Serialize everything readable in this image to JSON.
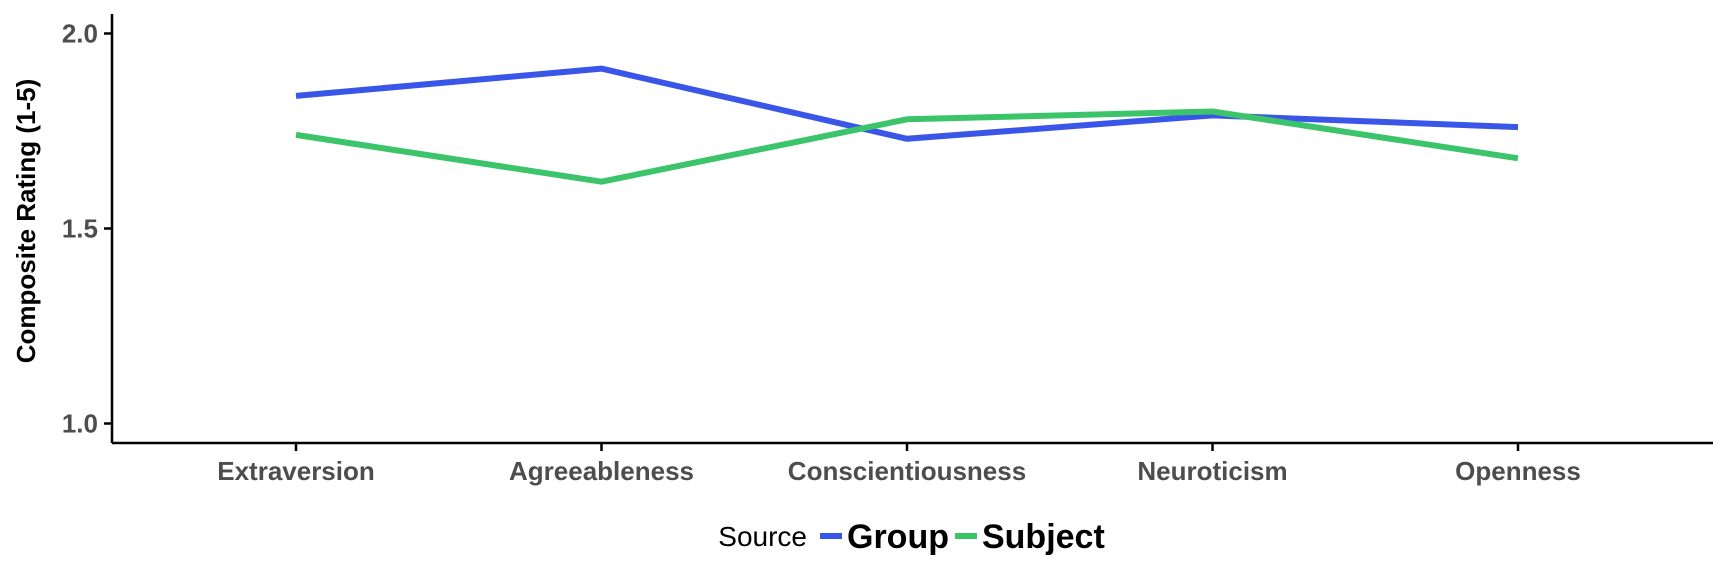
{
  "chart_data": {
    "type": "line",
    "categories": [
      "Extraversion",
      "Agreeableness",
      "Conscientiousness",
      "Neuroticism",
      "Openness"
    ],
    "series": [
      {
        "name": "Group",
        "color": "#3a56e8",
        "values": [
          1.84,
          1.91,
          1.73,
          1.79,
          1.76
        ]
      },
      {
        "name": "Subject",
        "color": "#3cc46b",
        "values": [
          1.74,
          1.62,
          1.78,
          1.8,
          1.68
        ]
      }
    ],
    "xlabel": "",
    "ylabel": "Composite Rating (1-5)",
    "ylim": [
      0.95,
      2.05
    ],
    "yticks": [
      "1.0",
      "1.5",
      "2.0"
    ],
    "grid": false,
    "legend": {
      "title": "Source",
      "position": "bottom"
    }
  }
}
